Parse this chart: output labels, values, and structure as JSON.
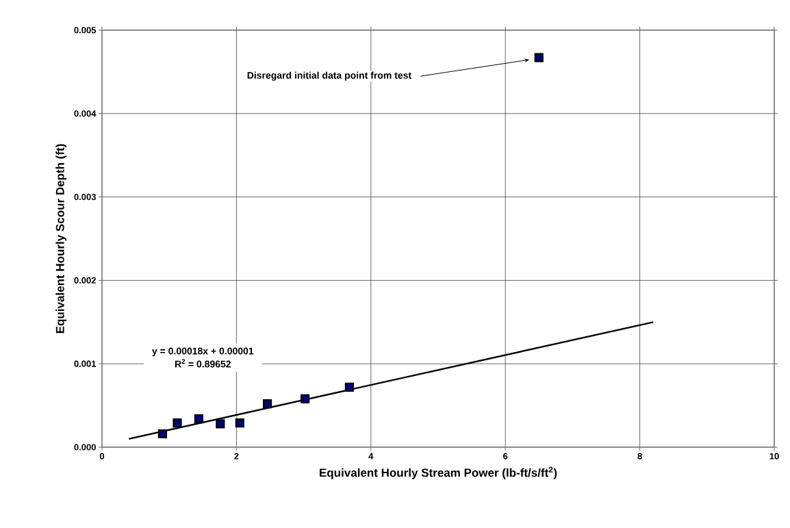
{
  "chart_data": {
    "type": "scatter",
    "xlabel": "Equivalent Hourly Stream Power (lb-ft/s/ft$^{2}$)",
    "ylabel": "Equivalent Hourly Scour Depth (ft)",
    "xlim": [
      0,
      10
    ],
    "ylim": [
      0,
      0.005
    ],
    "xticks": [
      0,
      2,
      4,
      6,
      8,
      10
    ],
    "yticks": [
      {
        "value": 0,
        "label": "0.000"
      },
      {
        "value": 0.001,
        "label": "0.001"
      },
      {
        "value": 0.002,
        "label": "0.002"
      },
      {
        "value": 0.003,
        "label": "0.003"
      },
      {
        "value": 0.004,
        "label": "0.004"
      },
      {
        "value": 0.005,
        "label": "0.005"
      }
    ],
    "grid": true,
    "series": [
      {
        "color": "#000080",
        "marker": "square",
        "x": [
          0.9,
          1.12,
          1.44,
          1.76,
          2.05,
          2.46,
          3.02,
          3.68,
          6.5
        ],
        "values": [
          0.00016,
          0.00029,
          0.00034,
          0.00028,
          0.00029,
          0.00052,
          0.00058,
          0.00072,
          0.00467
        ]
      },
      {
        "type": "line",
        "color": "#000000",
        "marker": "none",
        "line_style": "solid",
        "x": [
          0.4,
          8.2
        ],
        "values": [
          0.0001,
          0.0015
        ]
      }
    ],
    "annotations": [
      "Disregard initial data point from test",
      "y = 0.00018x + 0.00001",
      "R$^{2}$ = 0.89652"
    ]
  }
}
